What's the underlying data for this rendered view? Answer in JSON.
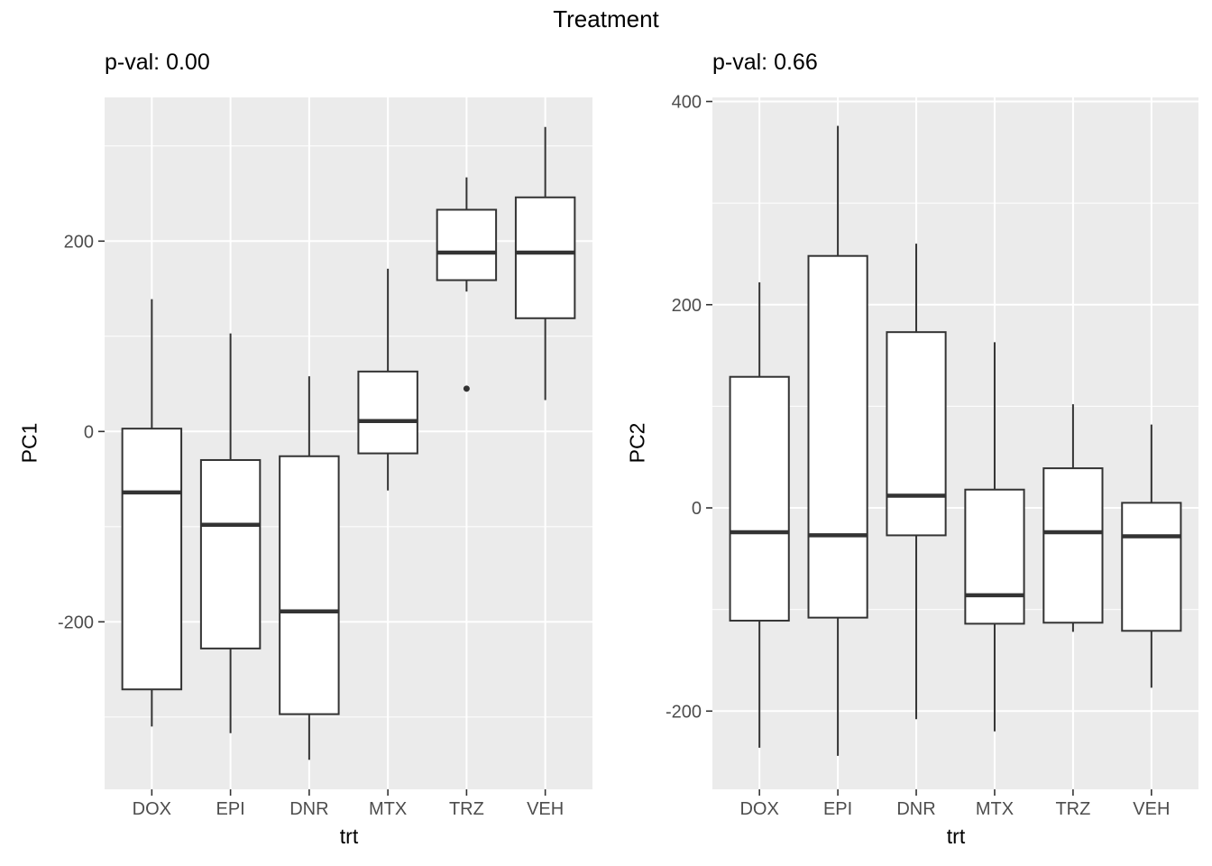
{
  "title": "Treatment",
  "colors": {
    "panel_bg": "#EBEBEB",
    "grid": "#FFFFFF",
    "box_stroke": "#333333",
    "box_fill": "#FFFFFF",
    "tick_text": "#4D4D4D",
    "tick_mark": "#333333",
    "title_text": "#000000"
  },
  "chart_data": [
    {
      "type": "boxplot",
      "title_annotation": "p-val: 0.00",
      "ylabel": "PC1",
      "xlabel": "trt",
      "categories": [
        "DOX",
        "EPI",
        "DNR",
        "MTX",
        "TRZ",
        "VEH"
      ],
      "ylim": [
        -376,
        351
      ],
      "yticks_major": [
        200,
        0,
        -200
      ],
      "yticks_minor": [
        300,
        100,
        -100,
        -300
      ],
      "grid": true,
      "boxes": [
        {
          "category": "DOX",
          "whisker_low": -310,
          "q1": -271,
          "median": -64,
          "q3": 3,
          "whisker_high": 139,
          "outliers": []
        },
        {
          "category": "EPI",
          "whisker_low": -317,
          "q1": -228,
          "median": -98,
          "q3": -30,
          "whisker_high": 103,
          "outliers": []
        },
        {
          "category": "DNR",
          "whisker_low": -345,
          "q1": -297,
          "median": -189,
          "q3": -26,
          "whisker_high": 58,
          "outliers": []
        },
        {
          "category": "MTX",
          "whisker_low": -62,
          "q1": -23,
          "median": 11,
          "q3": 63,
          "whisker_high": 171,
          "outliers": []
        },
        {
          "category": "TRZ",
          "whisker_low": 147,
          "q1": 159,
          "median": 188,
          "q3": 233,
          "whisker_high": 267,
          "outliers": [
            45
          ]
        },
        {
          "category": "VEH",
          "whisker_low": 33,
          "q1": 119,
          "median": 188,
          "q3": 246,
          "whisker_high": 320,
          "outliers": []
        }
      ]
    },
    {
      "type": "boxplot",
      "title_annotation": "p-val: 0.66",
      "ylabel": "PC2",
      "xlabel": "trt",
      "categories": [
        "DOX",
        "EPI",
        "DNR",
        "MTX",
        "TRZ",
        "VEH"
      ],
      "ylim": [
        -277,
        404
      ],
      "yticks_major": [
        400,
        200,
        0,
        -200
      ],
      "yticks_minor": [
        300,
        100,
        -100
      ],
      "grid": true,
      "boxes": [
        {
          "category": "DOX",
          "whisker_low": -236,
          "q1": -111,
          "median": -24,
          "q3": 129,
          "whisker_high": 222,
          "outliers": []
        },
        {
          "category": "EPI",
          "whisker_low": -244,
          "q1": -108,
          "median": -27,
          "q3": 248,
          "whisker_high": 376,
          "outliers": []
        },
        {
          "category": "DNR",
          "whisker_low": -208,
          "q1": -27,
          "median": 12,
          "q3": 173,
          "whisker_high": 260,
          "outliers": []
        },
        {
          "category": "MTX",
          "whisker_low": -220,
          "q1": -114,
          "median": -86,
          "q3": 18,
          "whisker_high": 163,
          "outliers": []
        },
        {
          "category": "TRZ",
          "whisker_low": -122,
          "q1": -113,
          "median": -24,
          "q3": 39,
          "whisker_high": 102,
          "outliers": []
        },
        {
          "category": "VEH",
          "whisker_low": -177,
          "q1": -121,
          "median": -28,
          "q3": 5,
          "whisker_high": 82,
          "outliers": []
        }
      ]
    }
  ]
}
